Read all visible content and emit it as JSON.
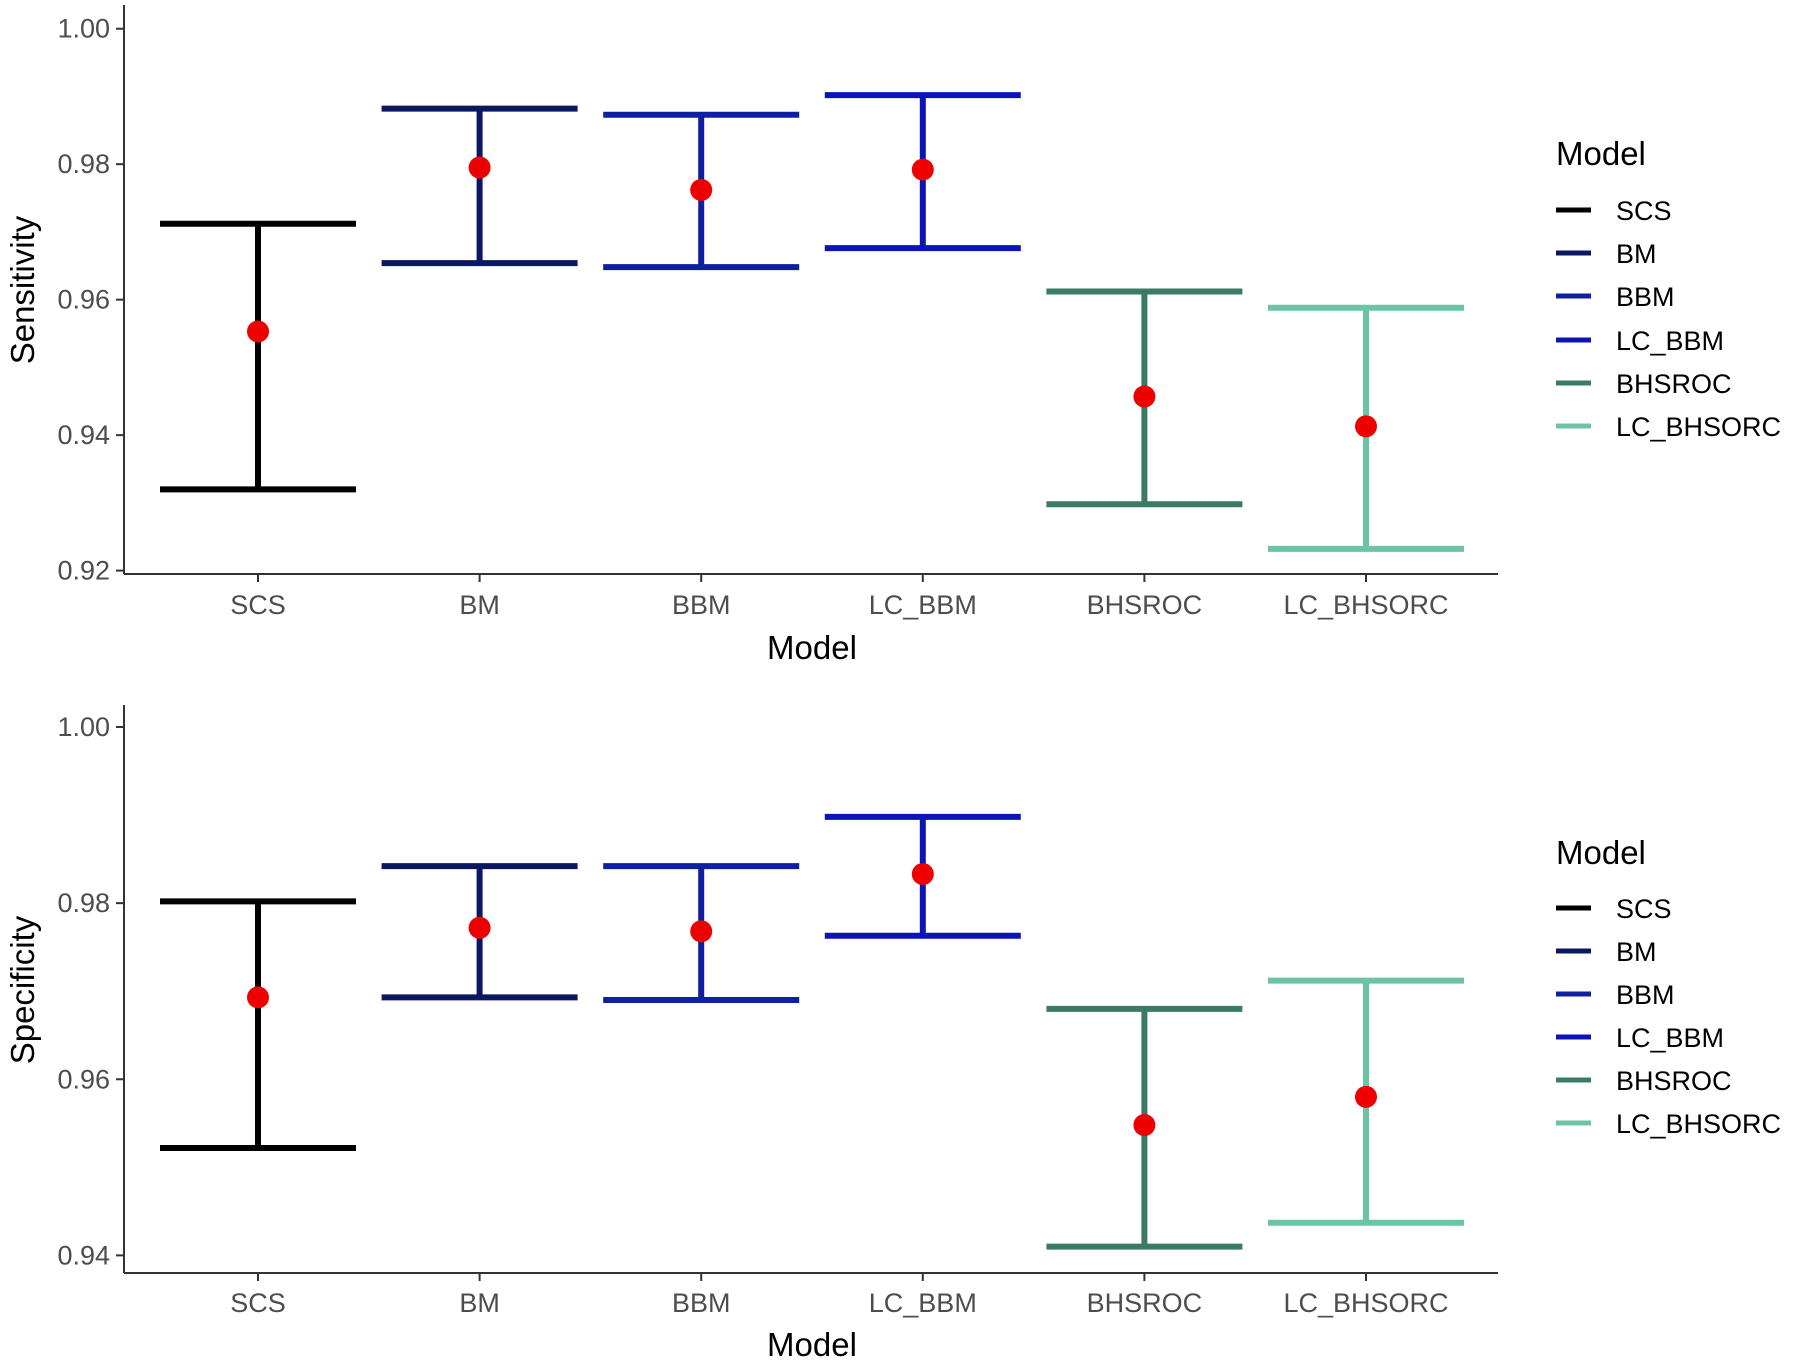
{
  "legend": {
    "title": "Model",
    "entries": [
      {
        "label": "SCS",
        "color": "#000000"
      },
      {
        "label": "BM",
        "color": "#0b1760"
      },
      {
        "label": "BBM",
        "color": "#0e1fa0"
      },
      {
        "label": "LC_BBM",
        "color": "#0a14b8"
      },
      {
        "label": "BHSROC",
        "color": "#3b7a66"
      },
      {
        "label": "LC_BHSORC",
        "color": "#6cc4a6"
      }
    ]
  },
  "point_color": "#ee0000",
  "chart_data": [
    {
      "type": "errorbar",
      "xlabel": "Model",
      "ylabel": "Sensitivity",
      "categories": [
        "SCS",
        "BM",
        "BBM",
        "LC_BBM",
        "BHSROC",
        "LC_BHSORC"
      ],
      "ylim": [
        0.9195,
        1.0035
      ],
      "yticks": [
        "0.92",
        "0.94",
        "0.96",
        "0.98",
        "1.00"
      ],
      "estimate": [
        0.9553,
        0.9795,
        0.9762,
        0.9792,
        0.9457,
        0.9413
      ],
      "lower": [
        0.932,
        0.9654,
        0.9648,
        0.9676,
        0.9298,
        0.9232
      ],
      "upper": [
        0.9712,
        0.9882,
        0.9873,
        0.9902,
        0.9612,
        0.9588
      ],
      "grid": false,
      "legend_position": "right"
    },
    {
      "type": "errorbar",
      "xlabel": "Model",
      "ylabel": "Specificity",
      "categories": [
        "SCS",
        "BM",
        "BBM",
        "LC_BBM",
        "BHSROC",
        "LC_BHSORC"
      ],
      "ylim": [
        0.938,
        1.0025
      ],
      "yticks": [
        "0.94",
        "0.96",
        "0.98",
        "1.00"
      ],
      "estimate": [
        0.9693,
        0.9772,
        0.9768,
        0.9833,
        0.9548,
        0.958
      ],
      "lower": [
        0.9522,
        0.9693,
        0.969,
        0.9763,
        0.941,
        0.9437
      ],
      "upper": [
        0.9802,
        0.9842,
        0.9842,
        0.9898,
        0.968,
        0.9712
      ],
      "grid": false,
      "legend_position": "right"
    }
  ]
}
